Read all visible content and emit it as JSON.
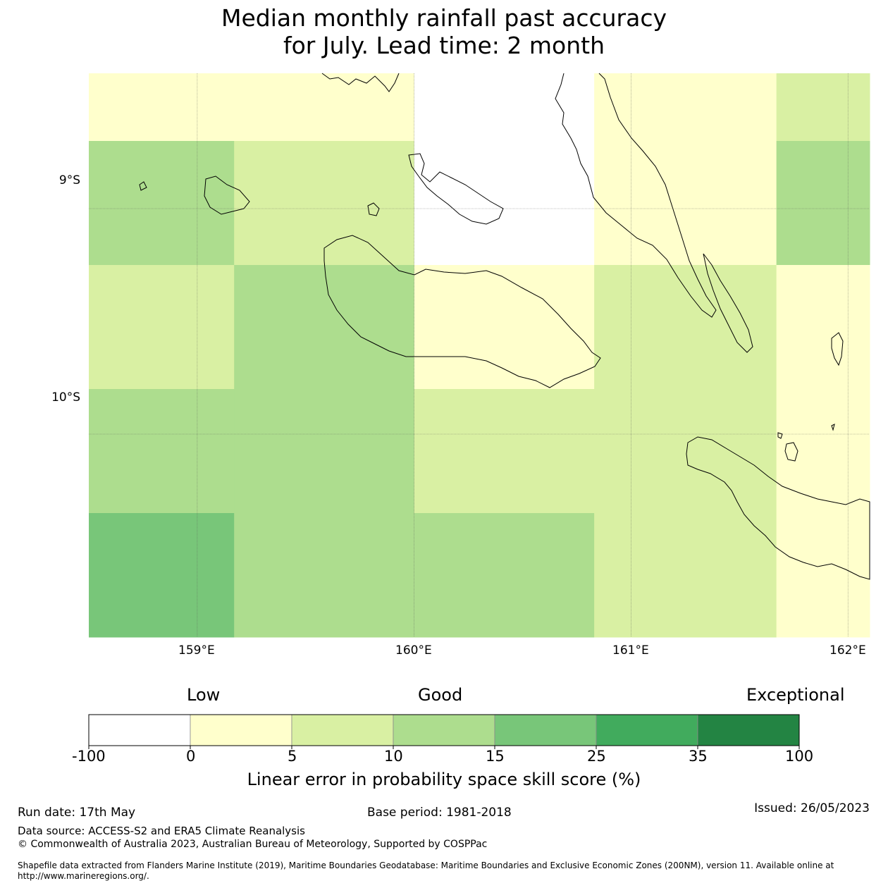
{
  "title": {
    "line1": "Median monthly rainfall past accuracy",
    "line2": "for July. Lead time: 2 month"
  },
  "map": {
    "lat_labels": [
      "9°S",
      "10°S"
    ],
    "lon_labels": [
      "159°E",
      "160°E",
      "161°E",
      "162°E"
    ],
    "lat_range": [
      -10.9,
      -8.4
    ],
    "lon_range": [
      158.5,
      162.1
    ],
    "grid_lon_edges": [
      158.5,
      159.17,
      160.0,
      160.83,
      161.67,
      162.1
    ],
    "grid_lat_edges": [
      -8.4,
      -8.7,
      -9.25,
      -9.8,
      -10.35,
      -10.9
    ],
    "cells_category": [
      [
        1,
        1,
        0,
        1,
        2
      ],
      [
        3,
        2,
        0,
        1,
        3
      ],
      [
        2,
        3,
        1,
        2,
        1
      ],
      [
        3,
        3,
        2,
        2,
        1
      ],
      [
        4,
        3,
        3,
        2,
        1
      ]
    ],
    "gridline_color": "#555555"
  },
  "colorbar": {
    "headings": [
      "Low",
      "Good",
      "Exceptional"
    ],
    "boundaries": [
      "-100",
      "0",
      "5",
      "10",
      "15",
      "25",
      "35",
      "100"
    ],
    "colors": [
      "#ffffff",
      "#ffffcc",
      "#d9f0a3",
      "#addd8e",
      "#78c679",
      "#41ab5d",
      "#238443"
    ],
    "title": "Linear error in probability space skill score (%)"
  },
  "footer": {
    "run_date": "Run date: 17th May",
    "base_period": "Base period: 1981-2018",
    "issued": "Issued: 26/05/2023",
    "data_source": "Data source: ACCESS-S2 and ERA5 Climate Reanalysis",
    "copyright": "© Commonwealth of Australia 2023, Australian Bureau of Meteorology, Supported by COSPPac",
    "shapefile_line1": "Shapefile data extracted from Flanders Marine Institute (2019), Maritime Boundaries Geodatabase: Maritime Boundaries and Exclusive Economic Zones (200NM), version 11. Available online at",
    "shapefile_line2": "http://www.marineregions.org/."
  }
}
